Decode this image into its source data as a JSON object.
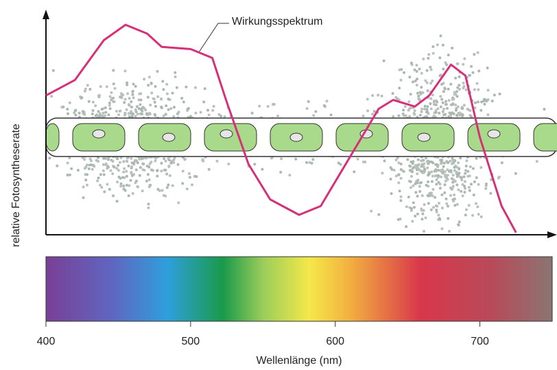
{
  "chart_data": {
    "type": "line",
    "xlabel": "Wellenlänge (nm)",
    "ylabel": "relative Fotosyntheserate",
    "annotation": "Wirkungsspektrum",
    "xlim": [
      400,
      750
    ],
    "xticks": [
      400,
      500,
      600,
      700
    ],
    "ylim": [
      0,
      100
    ],
    "series": [
      {
        "name": "Wirkungsspektrum",
        "color": "#d6307a",
        "x": [
          400,
          420,
          440,
          455,
          470,
          480,
          500,
          515,
          525,
          540,
          555,
          575,
          590,
          610,
          630,
          640,
          655,
          665,
          680,
          690,
          700,
          715,
          725
        ],
        "values": [
          63,
          70,
          88,
          95,
          91,
          85,
          84,
          80,
          60,
          32,
          16,
          9,
          13,
          35,
          57,
          61,
          58,
          63,
          77,
          72,
          44,
          13,
          1
        ]
      }
    ]
  }
}
